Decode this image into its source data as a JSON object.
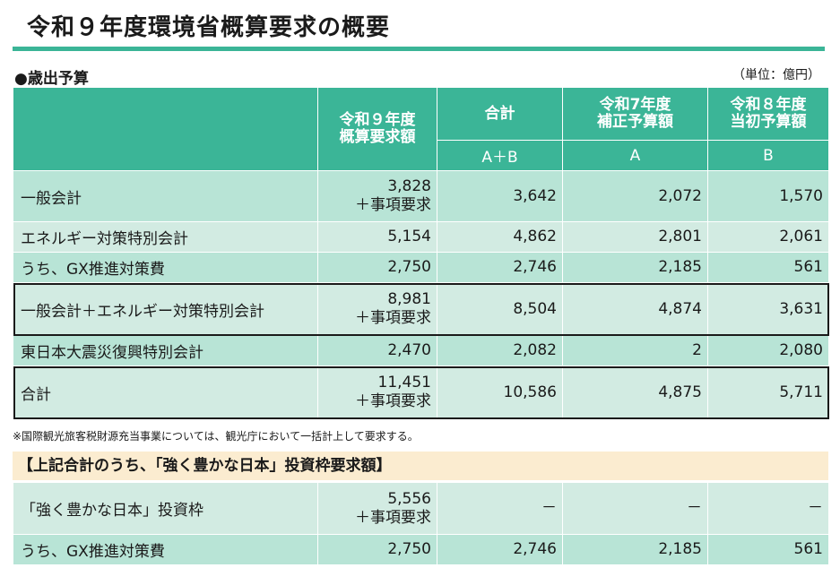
{
  "page": {
    "title": "令和９年度環境省概算要求の概要",
    "section_heading": "●歳出予算",
    "unit": "（単位：億円）"
  },
  "table": {
    "headers": {
      "col1": "令和９年度\n概算要求額",
      "col2": "合計",
      "col2_sub": "A＋B",
      "col3": "令和7年度\n補正予算額",
      "col3_sub": "A",
      "col4": "令和８年度\n当初予算額",
      "col4_sub": "B"
    },
    "rows": [
      {
        "label": "一般会計",
        "req": "3,828",
        "req_note": "＋事項要求",
        "total": "3,642",
        "a": "2,072",
        "b": "1,570"
      },
      {
        "label": "エネルギー対策特別会計",
        "req": "5,154",
        "req_note": "",
        "total": "4,862",
        "a": "2,801",
        "b": "2,061"
      },
      {
        "label": "うち、GX推進対策費",
        "req": "2,750",
        "req_note": "",
        "total": "2,746",
        "a": "2,185",
        "b": "561"
      },
      {
        "label": "一般会計＋エネルギー対策特別会計",
        "req": "8,981",
        "req_note": "＋事項要求",
        "total": "8,504",
        "a": "4,874",
        "b": "3,631"
      },
      {
        "label": "東日本大震災復興特別会計",
        "req": "2,470",
        "req_note": "",
        "total": "2,082",
        "a": "2",
        "b": "2,080"
      },
      {
        "label": "合計",
        "req": "11,451",
        "req_note": "＋事項要求",
        "total": "10,586",
        "a": "4,875",
        "b": "5,711"
      }
    ],
    "note": "※国際観光旅客税財源充当事業については、観光庁において一括計上して要求する。"
  },
  "sub_section": {
    "heading": "【上記合計のうち、「強く豊かな日本」投資枠要求額】",
    "rows": [
      {
        "label": "「強く豊かな日本」投資枠",
        "req": "5,556",
        "req_note": "＋事項要求",
        "total": "－",
        "a": "－",
        "b": "－"
      },
      {
        "label": "うち、GX推進対策費",
        "req": "2,750",
        "req_note": "",
        "total": "2,746",
        "a": "2,185",
        "b": "561"
      }
    ]
  },
  "colors": {
    "header_green": "#3bb597",
    "row_dark": "#b8e4d6",
    "row_light": "#d2ebe2",
    "band": "#fbecd0"
  }
}
